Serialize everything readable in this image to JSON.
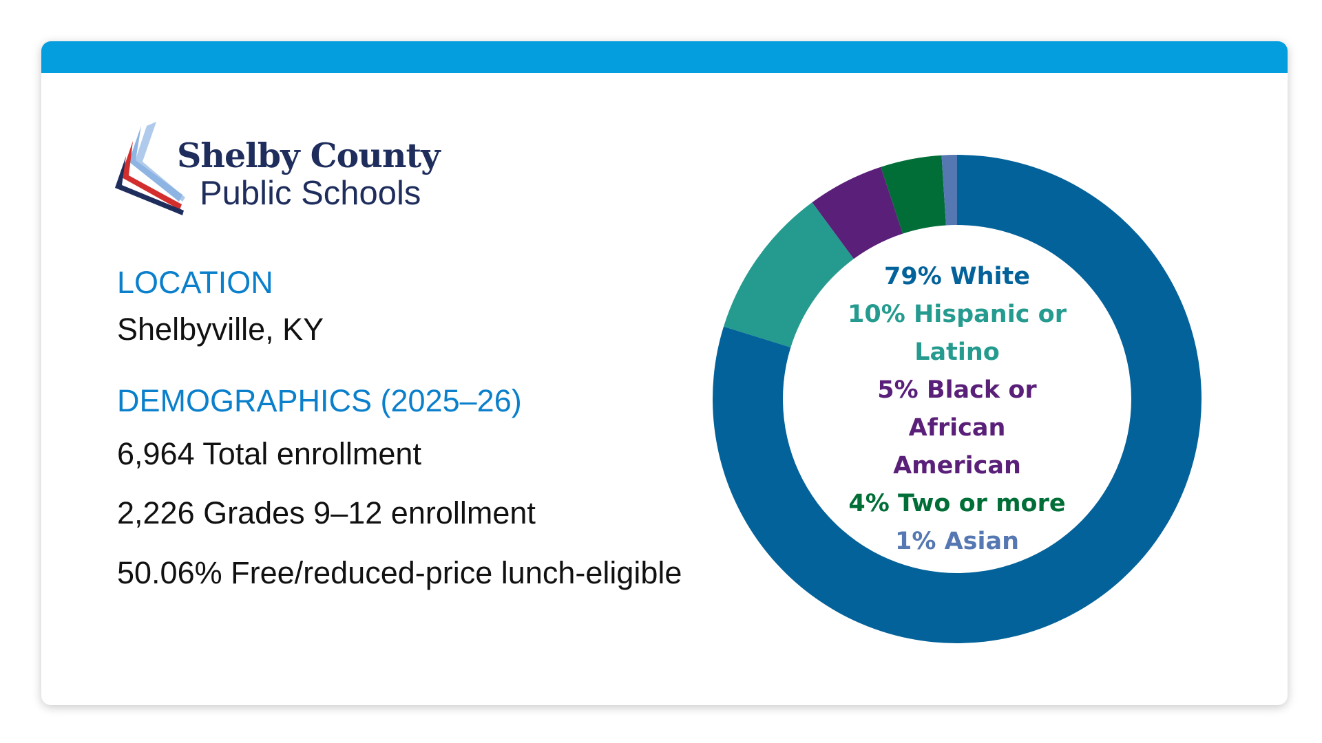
{
  "logo": {
    "name_line1": "Shelby County",
    "name_line2": "Public Schools"
  },
  "location": {
    "label": "LOCATION",
    "value": "Shelbyville, KY"
  },
  "demographics": {
    "label": "DEMOGRAPHICS (2025–26)",
    "stats": [
      "6,964 Total enrollment",
      "2,226 Grades 9–12 enrollment",
      "50.06% Free/reduced-price lunch-eligible"
    ]
  },
  "colors": {
    "top_bar": "#049ddd",
    "label_blue": "#0a7fcb"
  },
  "chart_data": {
    "type": "pie",
    "title": "",
    "donut": true,
    "start_angle_deg": 0,
    "direction": "clockwise",
    "slices": [
      {
        "name": "White",
        "value": 79,
        "color": "#03629a",
        "text_color": "#03629a",
        "label_lines": [
          "79% White"
        ]
      },
      {
        "name": "Hispanic or Latino",
        "value": 10,
        "color": "#259b8f",
        "text_color": "#259b8f",
        "label_lines": [
          "10% Hispanic or",
          "Latino"
        ]
      },
      {
        "name": "Black or African American",
        "value": 5,
        "color": "#5a1f79",
        "text_color": "#5a1f79",
        "label_lines": [
          "5% Black or African",
          "American"
        ]
      },
      {
        "name": "Two or more",
        "value": 4,
        "color": "#016e38",
        "text_color": "#016e38",
        "label_lines": [
          "4% Two or more"
        ]
      },
      {
        "name": "Asian",
        "value": 1,
        "color": "#5678b2",
        "text_color": "#5678b2",
        "label_lines": [
          "1% Asian"
        ]
      }
    ]
  }
}
